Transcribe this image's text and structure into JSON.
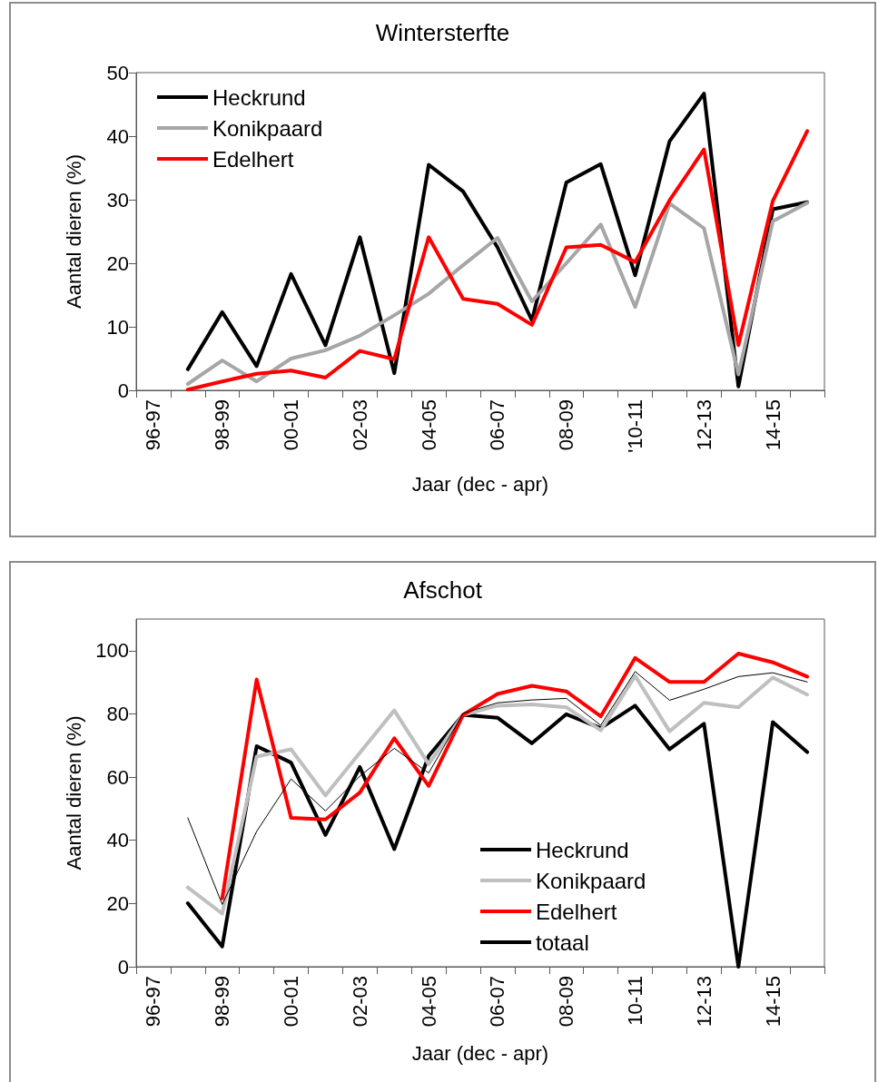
{
  "chart_data": [
    {
      "type": "line",
      "title": "Wintersterfte",
      "xlabel": "Jaar (dec - apr)",
      "ylabel": "Aantal dieren (%)",
      "categories": [
        "96-97",
        null,
        "98-99",
        null,
        "00-01",
        null,
        "02-03",
        null,
        "04-05",
        null,
        "06-07",
        null,
        "08-09",
        null,
        "'10-11",
        null,
        "12-13",
        null,
        "14-15",
        null
      ],
      "series": [
        {
          "name": "Heckrund",
          "color": "#000000",
          "values": [
            null,
            3.3,
            12.3,
            3.8,
            18.3,
            7.1,
            24.1,
            2.7,
            35.5,
            31.3,
            22.5,
            11.0,
            32.7,
            35.6,
            18.1,
            39.2,
            46.7,
            0.6,
            28.5,
            29.6
          ]
        },
        {
          "name": "Konikpaard",
          "color": "#a6a6a6",
          "values": [
            null,
            1.0,
            4.7,
            1.4,
            5.0,
            6.3,
            8.6,
            11.8,
            15.2,
            19.7,
            24.0,
            14.0,
            20.0,
            26.1,
            13.1,
            29.4,
            25.5,
            2.5,
            26.6,
            29.5
          ]
        },
        {
          "name": "Edelhert",
          "color": "#ff0000",
          "values": [
            null,
            0.1,
            1.4,
            2.6,
            3.1,
            2.0,
            6.2,
            4.9,
            24.1,
            14.4,
            13.6,
            10.3,
            22.5,
            22.9,
            20.2,
            29.9,
            37.9,
            7.1,
            29.8,
            40.8
          ]
        }
      ],
      "ylim": [
        0,
        50
      ],
      "yticks": [
        0,
        10,
        20,
        30,
        40,
        50
      ],
      "grid": false,
      "legend": "top left",
      "marker": "none",
      "line_style": "solid"
    },
    {
      "type": "line",
      "title": "Afschot",
      "xlabel": "Jaar (dec - apr)",
      "ylabel": "Aantal dieren (%)",
      "categories": [
        "96-97",
        null,
        "98-99",
        null,
        "00-01",
        null,
        "02-03",
        null,
        "04-05",
        null,
        "06-07",
        null,
        "08-09",
        null,
        "10-11",
        null,
        "12-13",
        null,
        "14-15",
        null
      ],
      "series": [
        {
          "name": "Heckrund",
          "color": "#000000",
          "values": [
            null,
            20.1,
            6.4,
            69.8,
            64.6,
            41.7,
            63.2,
            37.2,
            66.7,
            79.7,
            78.8,
            70.7,
            79.9,
            75.5,
            82.6,
            68.8,
            76.9,
            0,
            77.4,
            67.9
          ]
        },
        {
          "name": "Konikpaard",
          "color": "#bfbfbf",
          "values": [
            null,
            25.1,
            16.8,
            66.5,
            68.8,
            54.2,
            67.7,
            81.1,
            64.1,
            79.7,
            82.6,
            83.0,
            82.1,
            74.8,
            92.0,
            74.5,
            83.5,
            82.1,
            91.5,
            86.1
          ]
        },
        {
          "name": "Edelhert",
          "color": "#ff0000",
          "values": [
            null,
            null,
            21.6,
            90.9,
            47.1,
            46.6,
            55.1,
            72.3,
            57.2,
            79.7,
            86.3,
            88.9,
            87.1,
            79.2,
            97.7,
            90.1,
            90.1,
            99.1,
            96.3,
            91.8
          ]
        },
        {
          "name": "totaal",
          "color": "#000000",
          "values": [
            null,
            47.1,
            19.7,
            42.8,
            59.4,
            49.3,
            60.3,
            69.1,
            61.3,
            80.2,
            83.5,
            84.4,
            84.9,
            76.4,
            93.4,
            84.3,
            87.8,
            91.8,
            93.0,
            90.1
          ]
        }
      ],
      "ylim": [
        0,
        110
      ],
      "yticks": [
        0,
        20,
        40,
        60,
        80,
        100
      ],
      "grid": false,
      "legend": "bottom right",
      "marker": "none",
      "line_style": "solid"
    }
  ]
}
